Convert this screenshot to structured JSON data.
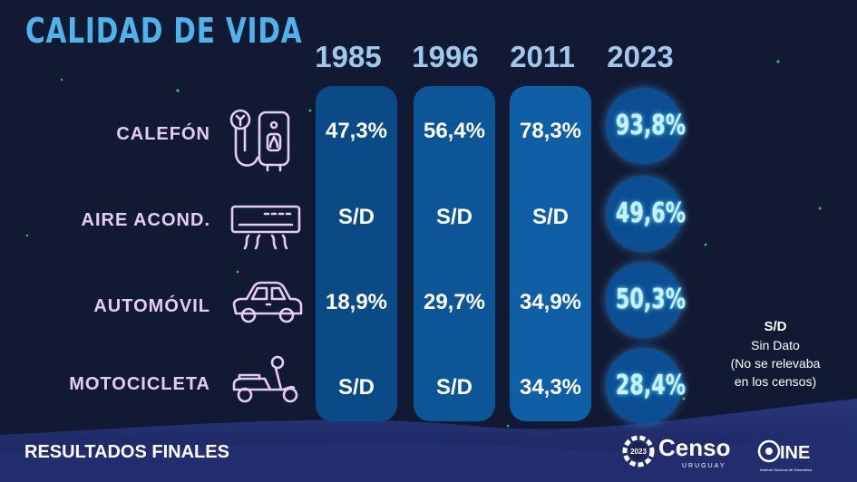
{
  "title": "CALIDAD DE VIDA",
  "years": [
    "1985",
    "1996",
    "2011",
    "2023"
  ],
  "rows": [
    {
      "label": "CALEFÓN",
      "icon": "water-heater-icon",
      "values": [
        "47,3%",
        "56,4%",
        "78,3%"
      ],
      "value_2023": "93,8%"
    },
    {
      "label": "AIRE ACOND.",
      "icon": "air-conditioner-icon",
      "values": [
        "S/D",
        "S/D",
        "S/D"
      ],
      "value_2023": "49,6%"
    },
    {
      "label": "AUTOMÓVIL",
      "icon": "car-icon",
      "values": [
        "18,9%",
        "29,7%",
        "34,9%"
      ],
      "value_2023": "50,3%"
    },
    {
      "label": "MOTOCICLETA",
      "icon": "scooter-icon",
      "values": [
        "S/D",
        "S/D",
        "34,3%"
      ],
      "value_2023": "28,4%"
    }
  ],
  "legend": {
    "abbr": "S/D",
    "line1": "Sin Dato",
    "line2": "(No se relevaba",
    "line3": "en los censos)"
  },
  "footer": "RESULTADOS FINALES",
  "logos": {
    "censo_word": "Censo",
    "censo_sub": "URUGUAY",
    "censo_year": "2023",
    "ine_word": "INE",
    "ine_sub": "Instituto Nacional de Estadística"
  },
  "colors": {
    "background": "#121a33",
    "title": "#4fb2ea",
    "years": "#9fc8ec",
    "row_labels": "#e4ccf7",
    "column_fill": "#0c5597",
    "circle_fill": "#0b4f92",
    "circle_text": "#c9f1ff",
    "bottom_wave": "#2c3a86"
  }
}
